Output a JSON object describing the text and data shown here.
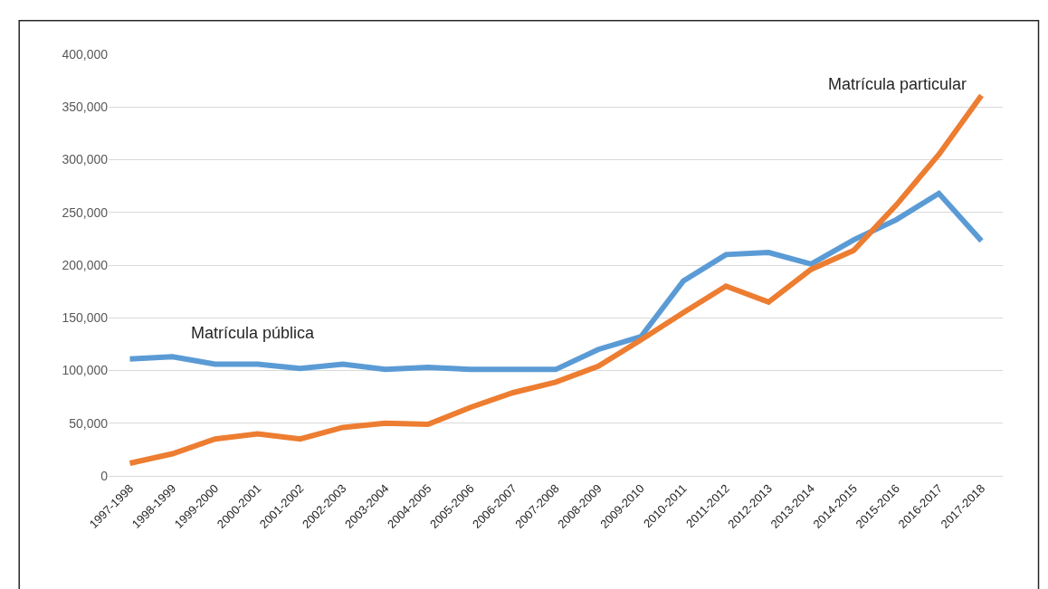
{
  "chart_data": {
    "type": "line",
    "categories": [
      "1997-1998",
      "1998-1999",
      "1999-2000",
      "2000-2001",
      "2001-2002",
      "2002-2003",
      "2003-2004",
      "2004-2005",
      "2005-2006",
      "2006-2007",
      "2007-2008",
      "2008-2009",
      "2009-2010",
      "2010-2011",
      "2011-2012",
      "2012-2013",
      "2013-2014",
      "2014-2015",
      "2015-2016",
      "2016-2017",
      "2017-2018"
    ],
    "series": [
      {
        "name": "Matrícula pública",
        "color": "#5b9bd5",
        "values": [
          111000,
          113000,
          106000,
          106000,
          102000,
          106000,
          101000,
          103000,
          101000,
          101000,
          101000,
          120000,
          132000,
          185000,
          210000,
          212000,
          201000,
          224000,
          243000,
          268000,
          223000
        ]
      },
      {
        "name": "Matrícula particular",
        "color": "#ed7d31",
        "values": [
          12000,
          21000,
          35000,
          40000,
          35000,
          46000,
          50000,
          49000,
          65000,
          79000,
          89000,
          104000,
          129000,
          155000,
          180000,
          165000,
          196000,
          214000,
          257000,
          305000,
          361000
        ]
      }
    ],
    "ylim": [
      0,
      400000
    ],
    "yticks": [
      {
        "value": 0,
        "label": "0"
      },
      {
        "value": 50000,
        "label": "50,000"
      },
      {
        "value": 100000,
        "label": "100,000"
      },
      {
        "value": 150000,
        "label": "150,000"
      },
      {
        "value": 200000,
        "label": "200,000"
      },
      {
        "value": 250000,
        "label": "250,000"
      },
      {
        "value": 300000,
        "label": "300,000"
      },
      {
        "value": 350000,
        "label": "350,000"
      },
      {
        "value": 400000,
        "label": "400,000"
      }
    ],
    "grid": "y",
    "legend": false,
    "marker": "none",
    "line_style": "solid"
  }
}
